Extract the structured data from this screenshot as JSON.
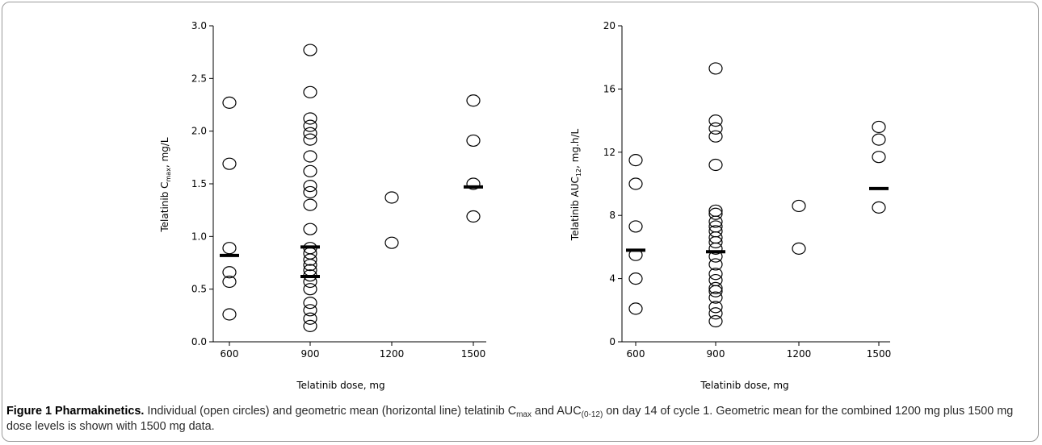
{
  "chart_data": [
    {
      "type": "scatter",
      "ylabel_parts": [
        "Telatinib C",
        "max",
        ", mg/L"
      ],
      "xlabel": "Telatinib dose, mg",
      "ylim": [
        0,
        3.0
      ],
      "yticks": [
        "0.0",
        "0.5",
        "1.0",
        "1.5",
        "2.0",
        "2.5",
        "3.0"
      ],
      "xticks": [
        "600",
        "900",
        "1200",
        "1500"
      ],
      "marker": "open circle",
      "mean_marker": "horizontal line",
      "series": [
        {
          "x": 600,
          "values": [
            2.27,
            1.69,
            0.89,
            0.66,
            0.57,
            0.26
          ]
        },
        {
          "x": 900,
          "values": [
            2.77,
            2.37,
            2.12,
            2.05,
            1.98,
            1.92,
            1.76,
            1.62,
            1.48,
            1.42,
            1.3,
            1.07,
            0.89,
            0.84,
            0.78,
            0.73,
            0.68,
            0.63,
            0.57,
            0.5,
            0.37,
            0.3,
            0.22,
            0.15
          ]
        },
        {
          "x": 1200,
          "values": [
            1.37,
            0.94
          ]
        },
        {
          "x": 1500,
          "values": [
            2.29,
            1.91,
            1.5,
            1.19
          ]
        }
      ],
      "geometric_means": [
        {
          "x": 600,
          "value": 0.82
        },
        {
          "x": 900,
          "value": 0.9
        },
        {
          "x": 900,
          "value": 0.62
        },
        {
          "x": 1500,
          "value": 1.47
        }
      ]
    },
    {
      "type": "scatter",
      "ylabel_parts": [
        "Telatinib AUC",
        "12",
        ", mg.h/L"
      ],
      "xlabel": "Telatinib dose, mg",
      "ylim": [
        0,
        20
      ],
      "yticks": [
        "0",
        "4",
        "8",
        "12",
        "16",
        "20"
      ],
      "xticks": [
        "600",
        "900",
        "1200",
        "1500"
      ],
      "marker": "open circle",
      "mean_marker": "horizontal line",
      "series": [
        {
          "x": 600,
          "values": [
            11.5,
            10.0,
            7.3,
            5.5,
            4.0,
            2.1
          ]
        },
        {
          "x": 900,
          "values": [
            17.3,
            14.0,
            13.5,
            13.0,
            11.2,
            8.3,
            8.1,
            7.6,
            7.3,
            7.0,
            6.6,
            6.3,
            5.9,
            5.4,
            4.9,
            4.3,
            3.9,
            3.4,
            3.2,
            2.8,
            2.2,
            1.8,
            1.3
          ]
        },
        {
          "x": 1200,
          "values": [
            8.6,
            5.9
          ]
        },
        {
          "x": 1500,
          "values": [
            13.6,
            12.8,
            11.7,
            8.5
          ]
        }
      ],
      "geometric_means": [
        {
          "x": 600,
          "value": 5.8
        },
        {
          "x": 900,
          "value": 5.7
        },
        {
          "x": 1500,
          "value": 9.7
        }
      ]
    }
  ],
  "caption": {
    "figure_label": "Figure 1 Pharmakinetics.",
    "part1": " Individual (open circles) and geometric mean (horizontal line) telatinib C",
    "sub1": "max",
    "part2": " and AUC",
    "sub2": "(0-12)",
    "part3": " on day 14 of cycle 1. Geometric mean for the combined 1200 mg plus 1500 mg dose levels is shown with 1500 mg data."
  }
}
